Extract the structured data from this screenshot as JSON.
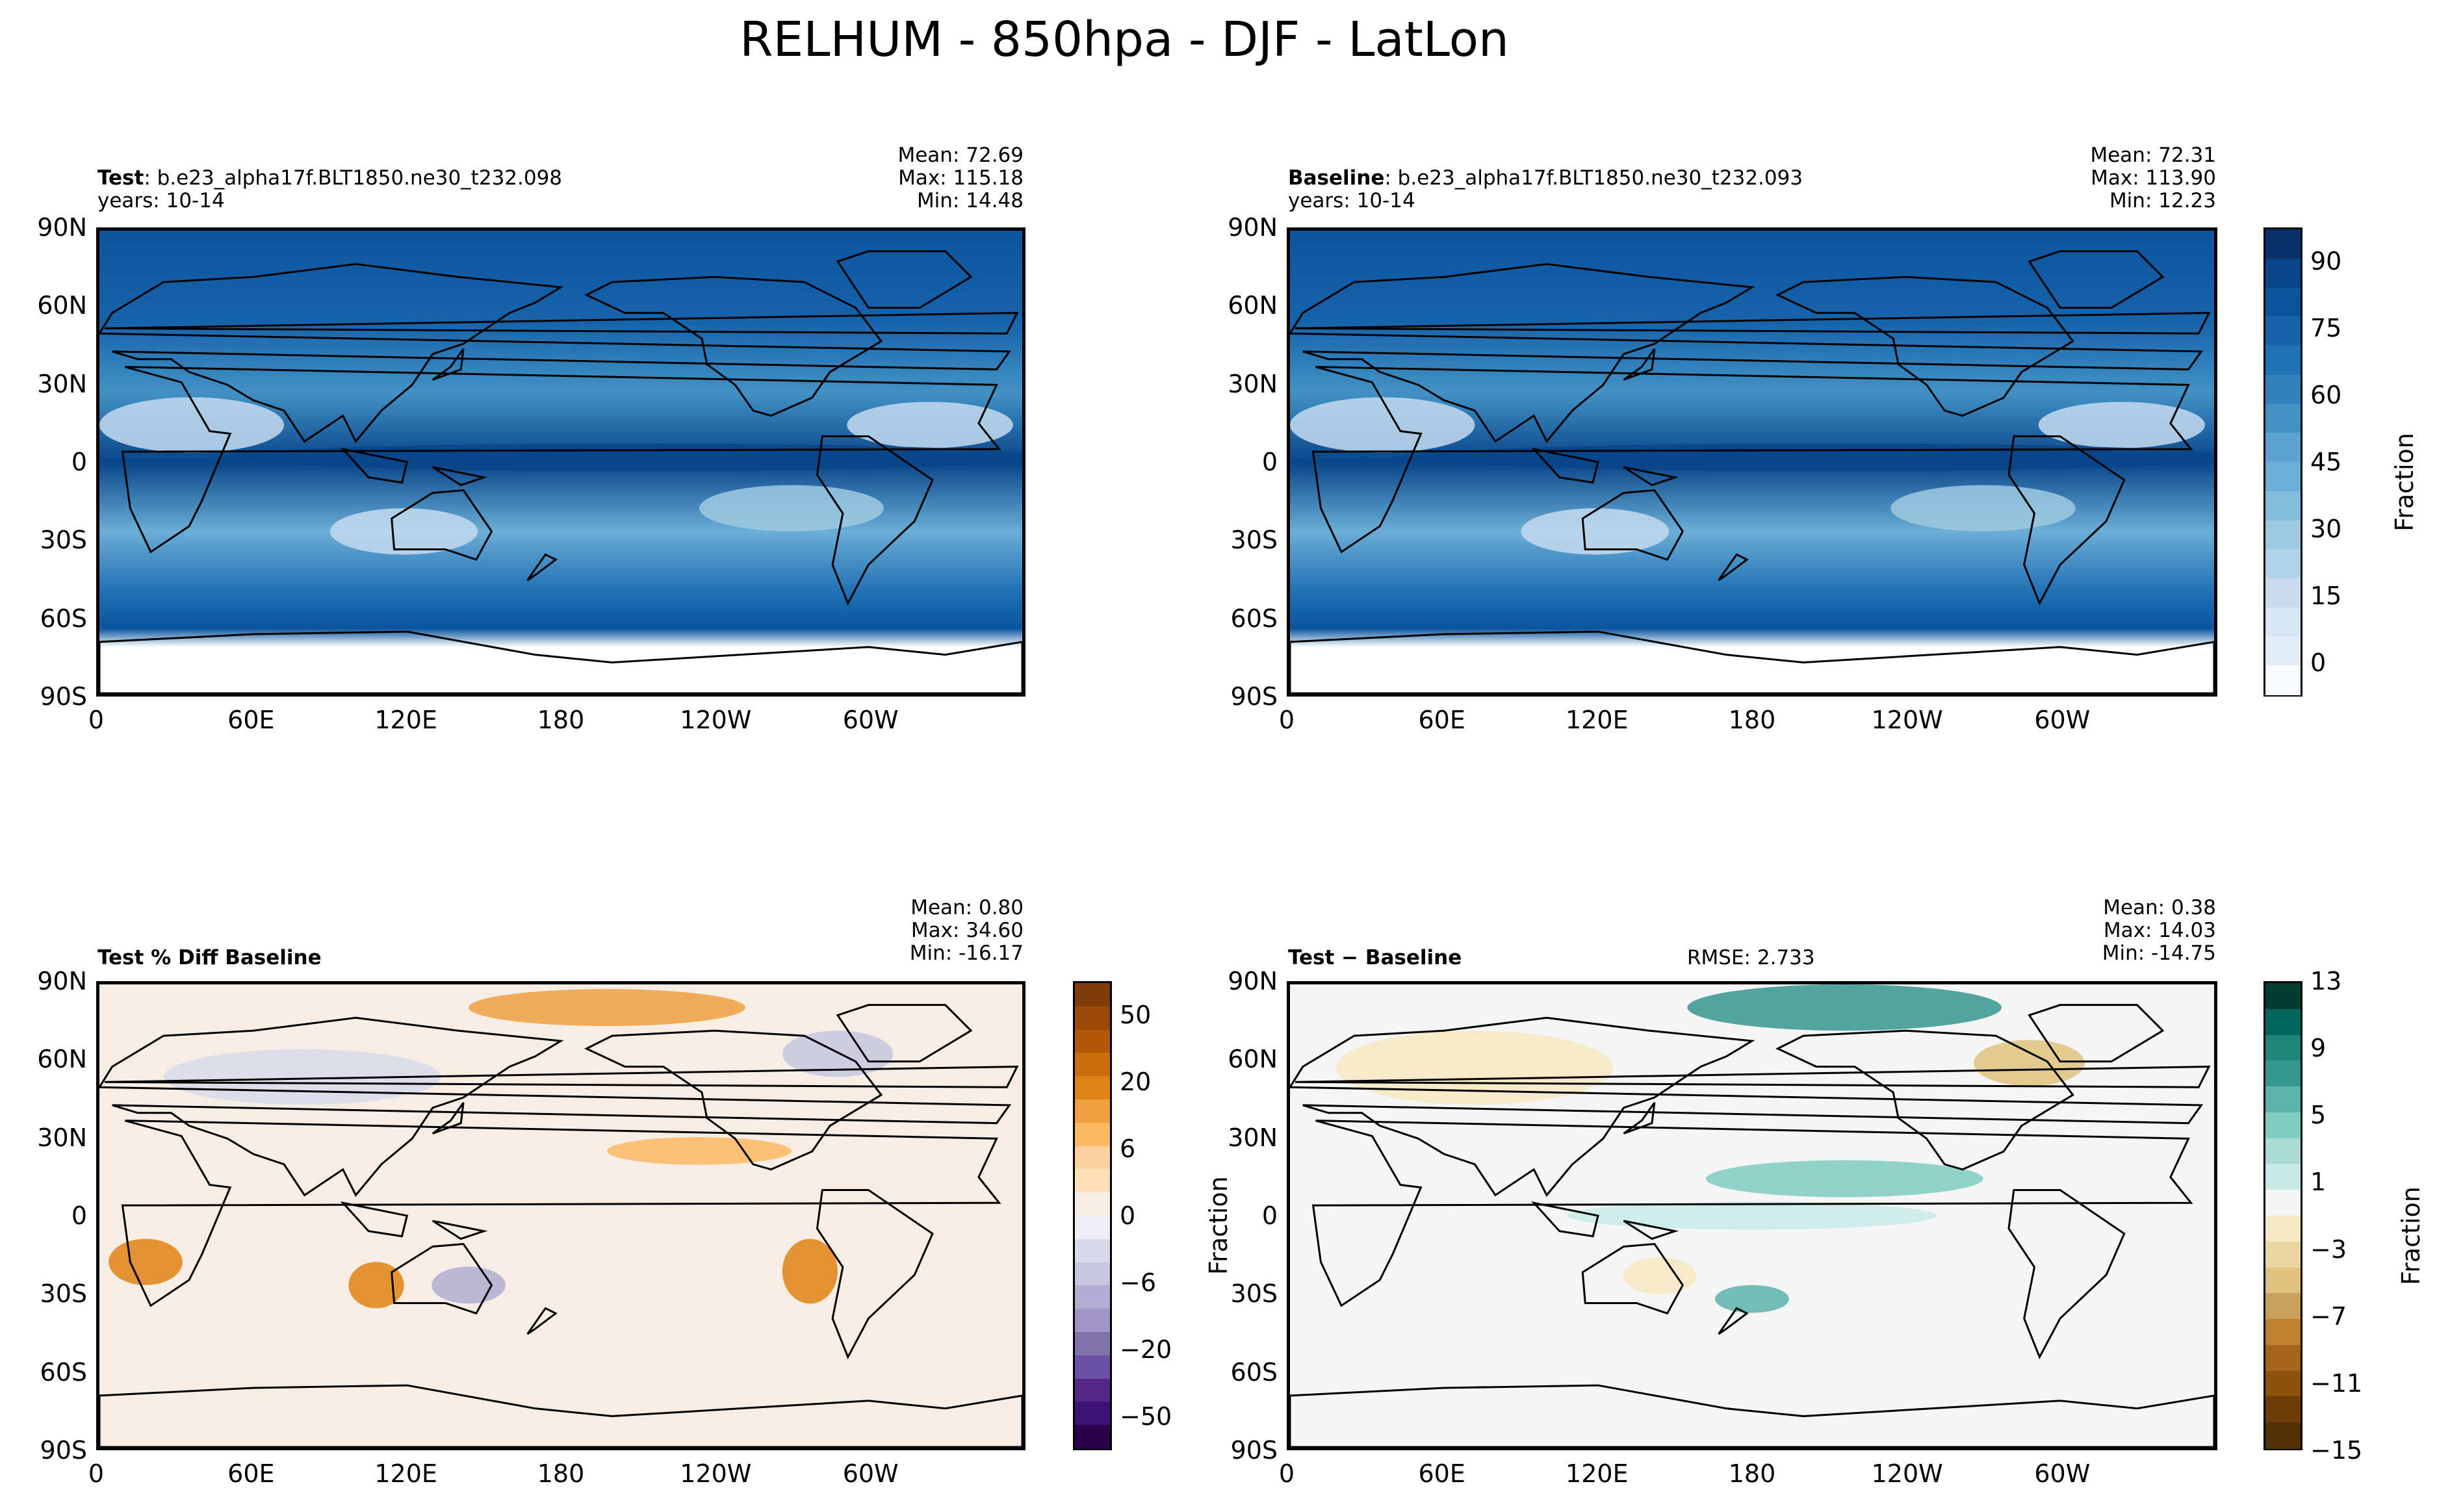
{
  "suptitle": "RELHUM - 850hpa - DJF - LatLon",
  "panels": {
    "test": {
      "title_bold": "Test",
      "title_rest": ": b.e23_alpha17f.BLT1850.ne30_t232.098",
      "years": "years: 10-14",
      "stats": [
        "Mean: 72.69",
        "Max: 115.18",
        "Min: 14.48"
      ]
    },
    "baseline": {
      "title_bold": "Baseline",
      "title_rest": ": b.e23_alpha17f.BLT1850.ne30_t232.093",
      "years": "years: 10-14",
      "stats": [
        "Mean: 72.31",
        "Max: 113.90",
        "Min: 12.23"
      ]
    },
    "pctdiff": {
      "title_bold": "Test % Diff Baseline",
      "stats": [
        "Mean:  0.80",
        "Max: 34.60",
        "Min: -16.17"
      ]
    },
    "diff": {
      "title_bold": "Test − Baseline",
      "rmse": "RMSE: 2.733",
      "stats": [
        "Mean:  0.38",
        "Max: 14.03",
        "Min: -14.75"
      ],
      "ylabel_left": "Fraction"
    }
  },
  "axes": {
    "lat_ticks": [
      "90N",
      "60N",
      "30N",
      "0",
      "30S",
      "60S",
      "90S"
    ],
    "lon_ticks": [
      "0",
      "60E",
      "120E",
      "180",
      "120W",
      "60W"
    ]
  },
  "colorbars": {
    "main": {
      "label": "Fraction",
      "ticks": [
        "90",
        "75",
        "60",
        "45",
        "30",
        "15",
        "0"
      ],
      "colors": [
        "#08306b",
        "#08458a",
        "#0b559f",
        "#1764ab",
        "#2171b5",
        "#3282be",
        "#4292c6",
        "#5ba3d0",
        "#6baed6",
        "#84bcdb",
        "#9ecae1",
        "#b2d2e8",
        "#c6dbef",
        "#d6e6f4",
        "#e1edf8",
        "#f7fbff"
      ]
    },
    "pct": {
      "ticks": [
        "50",
        "20",
        "6",
        "0",
        "−6",
        "−20",
        "−50"
      ],
      "colors": [
        "#7f3b08",
        "#9a4a06",
        "#b35806",
        "#c96d0e",
        "#e08214",
        "#efa040",
        "#fdb863",
        "#fdd0a0",
        "#fee0b6",
        "#f6eee5",
        "#eeeef4",
        "#d8daeb",
        "#c7c5e1",
        "#b2abd2",
        "#9f94c6",
        "#8073ac",
        "#6a51a3",
        "#542788",
        "#3f127a",
        "#2d004b"
      ]
    },
    "diff": {
      "label": "Fraction",
      "ticks": [
        "13",
        "9",
        "5",
        "1",
        "−3",
        "−7",
        "−11",
        "−15"
      ],
      "colors": [
        "#003c30",
        "#01665e",
        "#1f8579",
        "#35978f",
        "#5ab4ac",
        "#80cdc1",
        "#abdcd3",
        "#c7eae5",
        "#f5f5f5",
        "#f6e8c3",
        "#ead4a0",
        "#dfc27d",
        "#c9a15a",
        "#bf812d",
        "#a6641c",
        "#8c510a",
        "#6e3c07",
        "#543005"
      ]
    }
  },
  "colors": {
    "land_outline": "#000000",
    "missing": "#ffffff"
  }
}
